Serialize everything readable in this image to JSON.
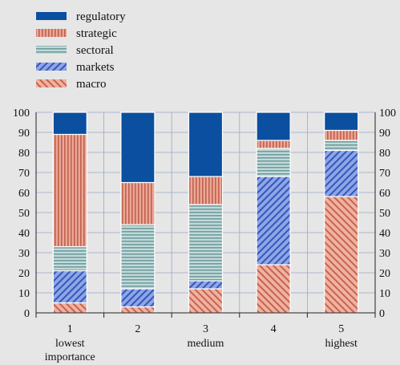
{
  "chart_data": {
    "type": "bar",
    "stacked": true,
    "categories": [
      "1",
      "2",
      "3",
      "4",
      "5"
    ],
    "category_sublabels": [
      [
        "lowest",
        "importance"
      ],
      [],
      [
        "medium"
      ],
      [],
      [
        "highest"
      ]
    ],
    "series": [
      {
        "name": "macro",
        "color": "#d9826e",
        "pattern": "diagonal-down",
        "values": [
          5,
          3,
          12,
          24,
          58
        ]
      },
      {
        "name": "markets",
        "color": "#4f6fcf",
        "pattern": "diagonal-up",
        "values": [
          16,
          9,
          4,
          44,
          23
        ]
      },
      {
        "name": "sectoral",
        "color": "#8fb3b3",
        "pattern": "horizontal",
        "values": [
          12,
          32,
          38,
          14,
          5
        ]
      },
      {
        "name": "strategic",
        "color": "#d9826e",
        "pattern": "vertical",
        "values": [
          56,
          21,
          14,
          4,
          5
        ]
      },
      {
        "name": "regulatory",
        "color": "#0a4fa0",
        "pattern": "solid",
        "values": [
          11,
          35,
          32,
          14,
          9
        ]
      }
    ],
    "legend_order": [
      "regulatory",
      "strategic",
      "sectoral",
      "markets",
      "macro"
    ],
    "legend_position": "top-left",
    "ylim": [
      0,
      100
    ],
    "yticks": [
      0,
      10,
      20,
      30,
      40,
      50,
      60,
      70,
      80,
      90,
      100
    ],
    "grid": true,
    "xlabel": "",
    "ylabel": "",
    "title": ""
  }
}
